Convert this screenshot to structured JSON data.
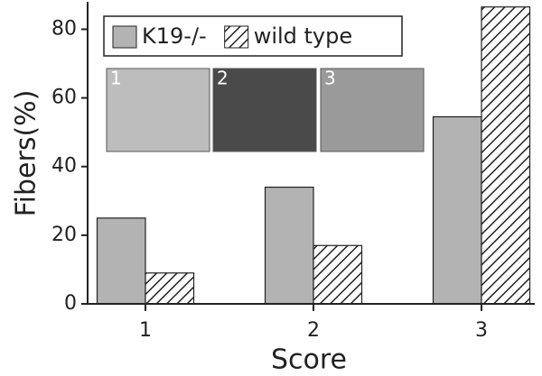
{
  "chart_data": {
    "type": "bar",
    "x_label": "Score",
    "y_label": "Fibers(%)",
    "categories": [
      "1",
      "2",
      "3"
    ],
    "series": [
      {
        "name": "K19-/-",
        "color": "#b3b3b3",
        "hatch": false,
        "values": [
          25,
          34,
          54.5
        ]
      },
      {
        "name": "wild type",
        "color": "#222222",
        "hatch": true,
        "values": [
          9,
          17,
          86.5
        ]
      }
    ],
    "ylim": [
      0,
      88
    ],
    "yticks": [
      0,
      20,
      40,
      60,
      80
    ],
    "inset_labels": [
      "1",
      "2",
      "3"
    ],
    "legend": "top-left",
    "grid": false
  }
}
